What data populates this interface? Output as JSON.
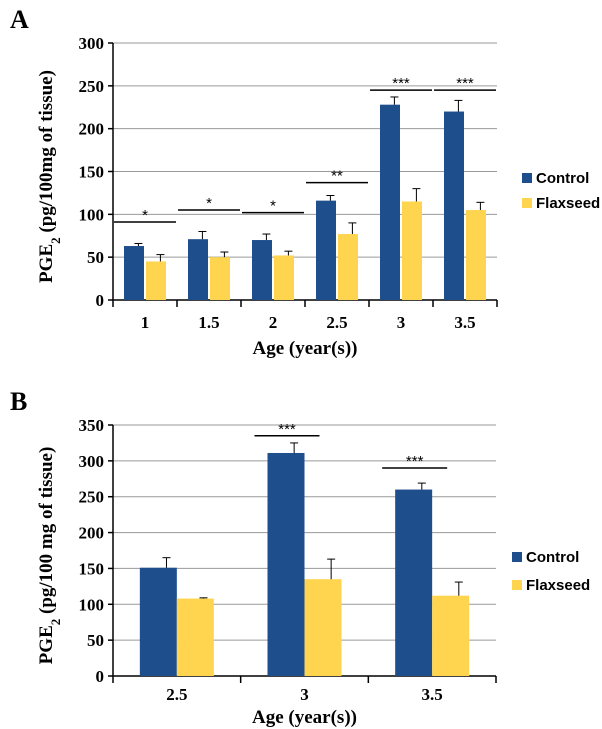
{
  "chart_data": [
    {
      "type": "bar",
      "panel_label": "A",
      "categories": [
        "1",
        "1.5",
        "2",
        "2.5",
        "3",
        "3.5"
      ],
      "series": [
        {
          "name": "Control",
          "values": [
            63,
            71,
            70,
            116,
            228,
            220
          ],
          "errors": [
            3,
            9,
            7,
            6,
            9,
            13
          ],
          "color": "#1f4e8c"
        },
        {
          "name": "Flaxseed",
          "values": [
            45,
            50,
            52,
            77,
            115,
            105
          ],
          "errors": [
            8,
            6,
            5,
            13,
            15,
            9
          ],
          "color": "#ffd54f"
        }
      ],
      "significance": [
        "*",
        "*",
        "*",
        "**",
        "***",
        "***"
      ],
      "xlabel": "Age (year(s))",
      "ylabel": "PGE2 (pg/100mg of tissue)",
      "ylim": [
        0,
        300
      ],
      "yticks": [
        "0",
        "50",
        "100",
        "150",
        "200",
        "250",
        "300"
      ],
      "grid": true,
      "legend_position": "right"
    },
    {
      "type": "bar",
      "panel_label": "B",
      "categories": [
        "2.5",
        "3",
        "3.5"
      ],
      "series": [
        {
          "name": "Control",
          "values": [
            151,
            311,
            260
          ],
          "errors": [
            14,
            14,
            9
          ],
          "color": "#1f4e8c"
        },
        {
          "name": "Flaxseed",
          "values": [
            108,
            135,
            112
          ],
          "errors": [
            1,
            28,
            19
          ],
          "color": "#ffd54f"
        }
      ],
      "significance": [
        "",
        "***",
        "***"
      ],
      "xlabel": "Age (year(s))",
      "ylabel": "PGE2 (pg/100 mg of tissue)",
      "ylim": [
        0,
        350
      ],
      "yticks": [
        "0",
        "50",
        "100",
        "150",
        "200",
        "250",
        "300",
        "350"
      ],
      "grid": true,
      "legend_position": "right"
    }
  ]
}
